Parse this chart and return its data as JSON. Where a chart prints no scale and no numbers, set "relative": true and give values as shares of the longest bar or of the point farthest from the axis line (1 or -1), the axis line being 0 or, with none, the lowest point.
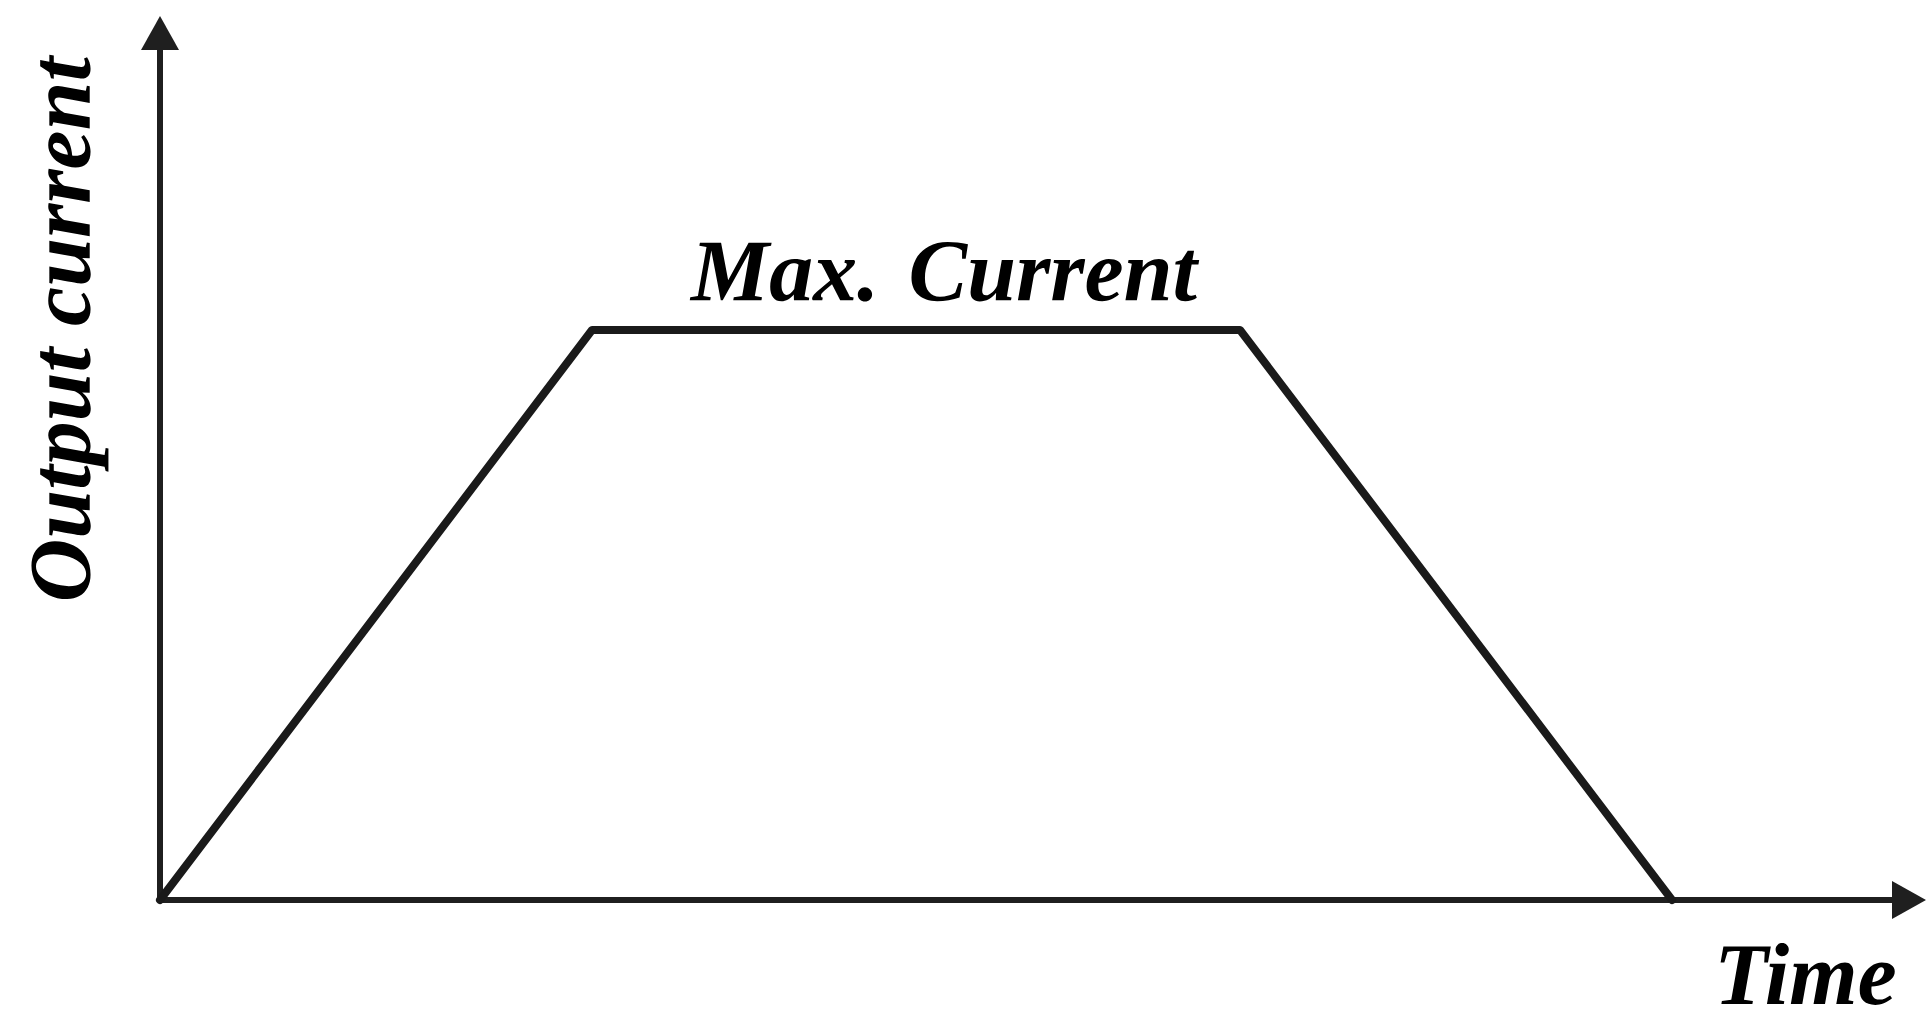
{
  "chart_data": {
    "type": "line",
    "relative": true,
    "categories": [
      null,
      null,
      null,
      null,
      null,
      null,
      null,
      null
    ],
    "values": [
      0,
      0.5,
      1,
      1,
      1,
      1,
      0.5,
      0
    ],
    "color": "#1a1a1a",
    "line_style": "solid",
    "xlabel": "Time",
    "ylabel": "Output current",
    "annotations": [
      {
        "text": "Max. Current",
        "y": 1
      }
    ]
  }
}
